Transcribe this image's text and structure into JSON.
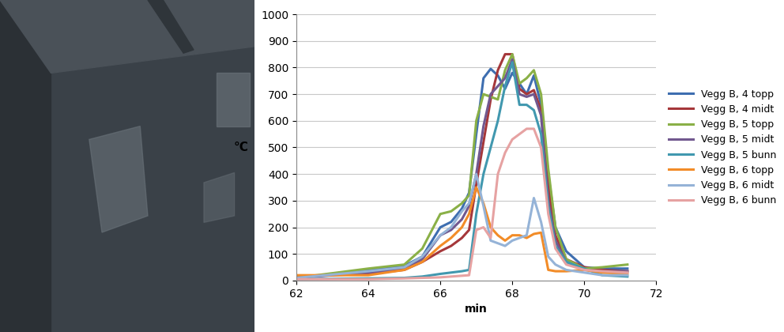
{
  "chart_data": {
    "type": "line",
    "x_label": "min",
    "y_label": "°C",
    "x": [
      62,
      64,
      65,
      65.5,
      66,
      66.3,
      66.6,
      66.8,
      67,
      67.2,
      67.4,
      67.6,
      67.8,
      68,
      68.2,
      68.4,
      68.6,
      68.8,
      69,
      69.2,
      69.5,
      70,
      70.5,
      71.2
    ],
    "xlim": [
      62,
      72
    ],
    "xticks": [
      62,
      64,
      66,
      68,
      70,
      72
    ],
    "ylim": [
      0,
      1000
    ],
    "yticks": [
      0,
      100,
      200,
      300,
      400,
      500,
      600,
      700,
      800,
      900,
      1000
    ],
    "grid": true,
    "legend": "right",
    "series": [
      {
        "name": "Vegg B, 4 topp",
        "color": "#3e6eb0",
        "values": [
          10,
          40,
          55,
          90,
          200,
          220,
          270,
          330,
          550,
          760,
          795,
          770,
          720,
          780,
          740,
          700,
          770,
          660,
          400,
          200,
          110,
          50,
          45,
          45
        ]
      },
      {
        "name": "Vegg B, 4 midt",
        "color": "#a5373a",
        "values": [
          15,
          25,
          40,
          70,
          110,
          130,
          160,
          190,
          360,
          520,
          680,
          790,
          850,
          850,
          720,
          700,
          715,
          640,
          350,
          170,
          80,
          50,
          40,
          35
        ]
      },
      {
        "name": "Vegg B, 5 topp",
        "color": "#8ab047",
        "values": [
          10,
          45,
          60,
          120,
          250,
          260,
          290,
          320,
          600,
          700,
          690,
          680,
          790,
          850,
          740,
          760,
          790,
          700,
          420,
          200,
          80,
          45,
          50,
          60
        ]
      },
      {
        "name": "Vegg B, 5 midt",
        "color": "#71588f",
        "values": [
          10,
          30,
          45,
          80,
          170,
          190,
          230,
          280,
          400,
          580,
          700,
          730,
          760,
          830,
          700,
          690,
          700,
          620,
          300,
          150,
          70,
          40,
          35,
          35
        ]
      },
      {
        "name": "Vegg B, 5 bunn",
        "color": "#4198af",
        "values": [
          5,
          8,
          10,
          15,
          25,
          30,
          35,
          40,
          250,
          400,
          500,
          600,
          730,
          820,
          660,
          660,
          640,
          550,
          280,
          130,
          70,
          45,
          20,
          15
        ]
      },
      {
        "name": "Vegg B, 6 topp",
        "color": "#f28c28",
        "values": [
          20,
          20,
          40,
          70,
          130,
          160,
          200,
          250,
          350,
          290,
          200,
          170,
          150,
          170,
          170,
          160,
          175,
          180,
          40,
          35,
          35,
          40,
          30,
          25
        ]
      },
      {
        "name": "Vegg B, 6 midt",
        "color": "#95b3d7",
        "values": [
          10,
          35,
          50,
          90,
          170,
          200,
          260,
          290,
          400,
          280,
          150,
          140,
          130,
          150,
          160,
          170,
          310,
          220,
          90,
          60,
          40,
          30,
          20,
          20
        ]
      },
      {
        "name": "Vegg B, 6 bunn",
        "color": "#e6a2a2",
        "values": [
          5,
          5,
          8,
          10,
          12,
          15,
          18,
          20,
          190,
          200,
          160,
          400,
          480,
          530,
          550,
          570,
          570,
          500,
          250,
          120,
          60,
          40,
          35,
          30
        ]
      }
    ]
  }
}
